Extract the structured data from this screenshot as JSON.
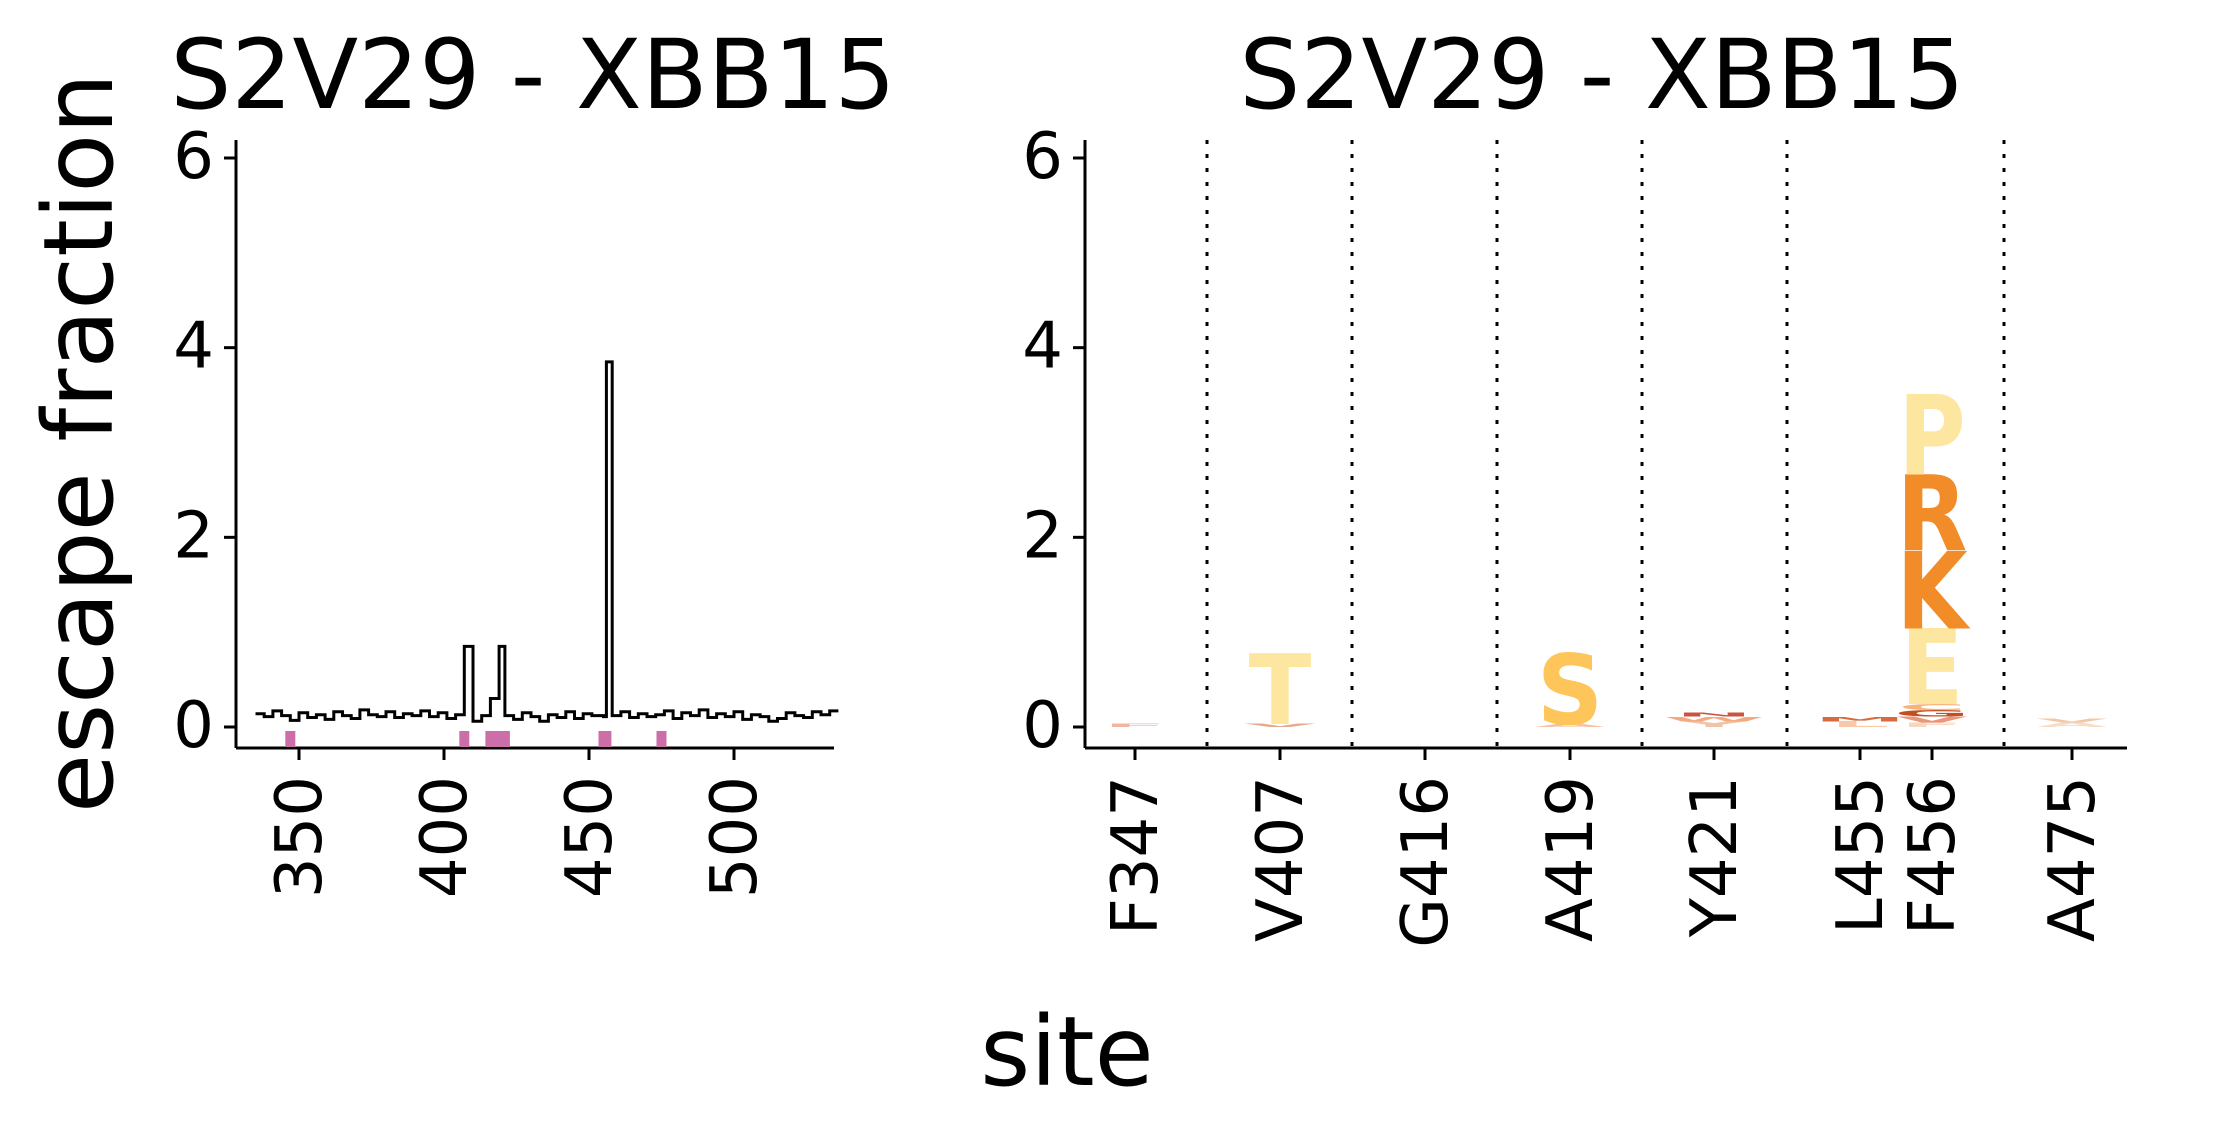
{
  "ylabel": "escape fraction",
  "xlabel": "site",
  "chart_data": [
    {
      "type": "line",
      "title": "S2V29 - XBB15",
      "xlabel": "site",
      "ylabel": "escape fraction",
      "xlim": [
        331,
        538
      ],
      "ylim": [
        -0.2,
        6.2
      ],
      "xticks": [
        "350",
        "400",
        "450",
        "500"
      ],
      "yticks": [
        "0",
        "2",
        "4",
        "6"
      ],
      "series": [
        {
          "x": [
            335,
            338,
            341,
            344,
            347,
            350,
            353,
            356,
            359,
            362,
            365,
            368,
            371,
            374,
            377,
            380,
            383,
            386,
            389,
            392,
            395,
            398,
            401,
            404,
            407,
            410,
            413,
            416,
            419,
            421,
            424,
            427,
            430,
            433,
            436,
            439,
            442,
            445,
            448,
            451,
            455,
            456,
            458,
            461,
            464,
            467,
            470,
            473,
            476,
            479,
            482,
            485,
            488,
            491,
            494,
            497,
            500,
            503,
            506,
            509,
            512,
            515,
            518,
            521,
            524,
            527,
            530,
            533
          ],
          "y": [
            0.14,
            0.11,
            0.17,
            0.12,
            0.07,
            0.15,
            0.1,
            0.13,
            0.08,
            0.16,
            0.12,
            0.09,
            0.18,
            0.13,
            0.11,
            0.16,
            0.1,
            0.14,
            0.12,
            0.17,
            0.11,
            0.15,
            0.09,
            0.13,
            0.85,
            0.06,
            0.12,
            0.3,
            0.85,
            0.12,
            0.08,
            0.15,
            0.11,
            0.06,
            0.13,
            0.1,
            0.16,
            0.09,
            0.14,
            0.12,
            0.11,
            3.85,
            0.12,
            0.16,
            0.1,
            0.14,
            0.11,
            0.13,
            0.17,
            0.09,
            0.15,
            0.12,
            0.18,
            0.1,
            0.14,
            0.11,
            0.16,
            0.08,
            0.13,
            0.11,
            0.06,
            0.09,
            0.15,
            0.12,
            0.1,
            0.16,
            0.13,
            0.17
          ]
        }
      ],
      "highlighted_sites": [
        347,
        407,
        416,
        419,
        421,
        455,
        456,
        475
      ],
      "highlight_color": "#cc6fa8",
      "line_color": "#000000",
      "grid": false
    },
    {
      "type": "logo",
      "title": "S2V29 - XBB15",
      "ylim": [
        -0.2,
        6.2
      ],
      "yticks": [
        "0",
        "2",
        "4",
        "6"
      ],
      "sites": [
        "F347",
        "V407",
        "G416",
        "A419",
        "Y421",
        "L455",
        "F456",
        "A475"
      ],
      "separators_after": [
        "F347",
        "V407",
        "G416",
        "A419",
        "Y421",
        "F456"
      ],
      "separator_style": "dotted",
      "grid": false,
      "letters": [
        {
          "site": "F347",
          "letter": "F",
          "height": 0.03,
          "color": "#f2b6a0"
        },
        {
          "site": "V407",
          "letter": "V",
          "height": 0.03,
          "color": "#e6a98c"
        },
        {
          "site": "V407",
          "letter": "T",
          "height": 0.75,
          "color": "#fde7a0"
        },
        {
          "site": "A419",
          "letter": "A",
          "height": 0.03,
          "color": "#f4c3a8"
        },
        {
          "site": "A419",
          "letter": "S",
          "height": 0.75,
          "color": "#fdc55a"
        },
        {
          "site": "Y421",
          "letter": "Y",
          "height": 0.06,
          "color": "#f1c3aa"
        },
        {
          "site": "Y421",
          "letter": "W",
          "height": 0.05,
          "color": "#f5a97e"
        },
        {
          "site": "Y421",
          "letter": "N",
          "height": 0.04,
          "color": "#c9553f"
        },
        {
          "site": "L455",
          "letter": "L",
          "height": 0.06,
          "color": "#f7c9a8"
        },
        {
          "site": "L455",
          "letter": "M",
          "height": 0.05,
          "color": "#d86a3e"
        },
        {
          "site": "F456",
          "letter": "F",
          "height": 0.05,
          "color": "#f7d7c0"
        },
        {
          "site": "F456",
          "letter": "V",
          "height": 0.06,
          "color": "#e9967a"
        },
        {
          "site": "F456",
          "letter": "G",
          "height": 0.07,
          "color": "#c4501f"
        },
        {
          "site": "F456",
          "letter": "C",
          "height": 0.06,
          "color": "#f6b37a"
        },
        {
          "site": "F456",
          "letter": "E",
          "height": 0.8,
          "color": "#fde7a0"
        },
        {
          "site": "F456",
          "letter": "K",
          "height": 0.82,
          "color": "#f28c28"
        },
        {
          "site": "F456",
          "letter": "R",
          "height": 0.8,
          "color": "#f28c28"
        },
        {
          "site": "F456",
          "letter": "P",
          "height": 0.85,
          "color": "#fde7a0"
        },
        {
          "site": "A475",
          "letter": "A",
          "height": 0.05,
          "color": "#f9dcc4"
        },
        {
          "site": "A475",
          "letter": "V",
          "height": 0.04,
          "color": "#f3c8a8"
        }
      ]
    }
  ]
}
